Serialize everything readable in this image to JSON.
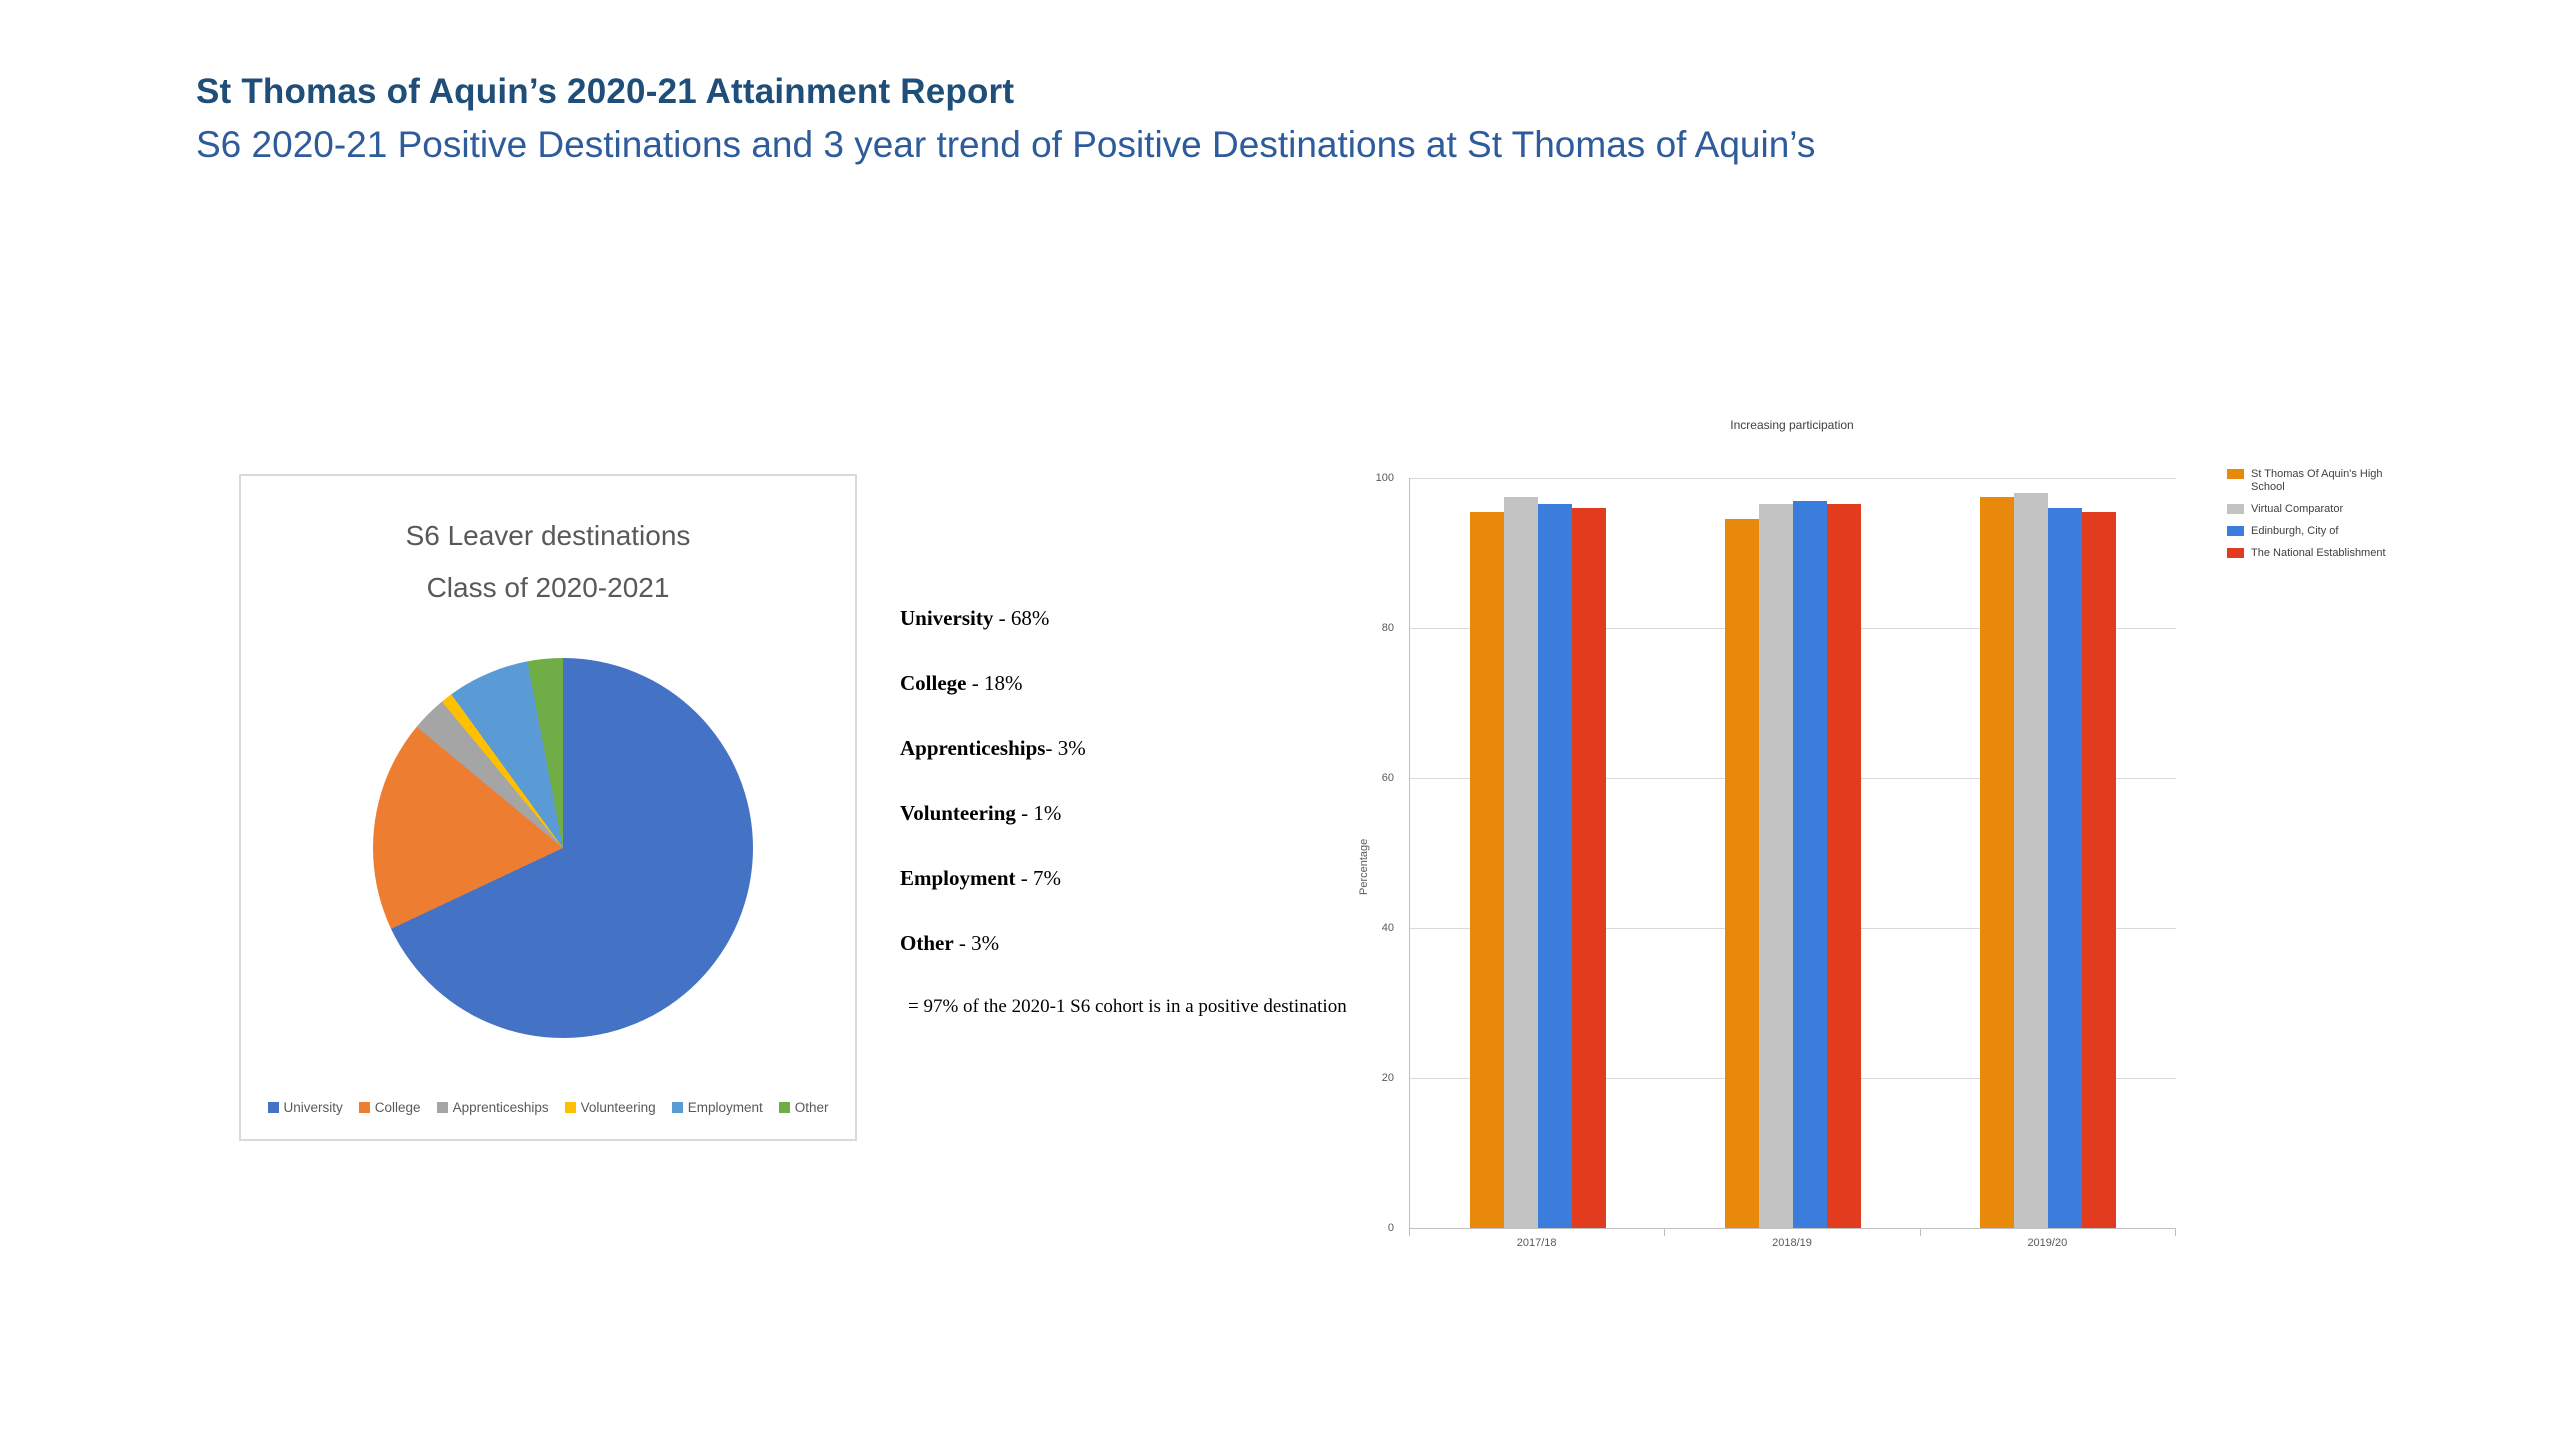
{
  "header": {
    "title": "St Thomas of Aquin’s 2020-21 Attainment Report",
    "subtitle": "S6 2020-21 Positive Destinations and 3 year trend of Positive Destinations at St Thomas of Aquin’s"
  },
  "destinations": {
    "lines": [
      {
        "label": "University",
        "rest": " - 68%"
      },
      {
        "label": "College",
        "rest": " - 18%"
      },
      {
        "label": "Apprenticeships",
        "rest": "- 3%"
      },
      {
        "label": "Volunteering",
        "rest": " - 1%"
      },
      {
        "label": "Employment",
        "rest": " - 7%"
      },
      {
        "label": "Other",
        "rest": " - 3%"
      }
    ],
    "summary": "= 97% of the 2020-1 S6 cohort is in a positive destination"
  },
  "chart_data": [
    {
      "type": "pie",
      "title_lines": [
        "S6 Leaver destinations",
        "Class of 2020-2021"
      ],
      "legend_position": "bottom",
      "slices": [
        {
          "label": "University",
          "value": 68,
          "color": "#4472C4"
        },
        {
          "label": "College",
          "value": 18,
          "color": "#ED7D31"
        },
        {
          "label": "Apprenticeships",
          "value": 3,
          "color": "#A5A5A5"
        },
        {
          "label": "Volunteering",
          "value": 1,
          "color": "#FFC000"
        },
        {
          "label": "Employment",
          "value": 7,
          "color": "#5B9BD5"
        },
        {
          "label": "Other",
          "value": 3,
          "color": "#70AD47"
        }
      ]
    },
    {
      "type": "bar",
      "title": "Increasing participation",
      "xlabel": "",
      "ylabel": "Percentage",
      "ylim": [
        0,
        100
      ],
      "yticks": [
        0,
        20,
        40,
        60,
        80,
        100
      ],
      "grid": true,
      "legend_position": "right",
      "categories": [
        "2017/18",
        "2018/19",
        "2019/20"
      ],
      "series": [
        {
          "name": "St Thomas Of Aquin's High School",
          "color": "#E8890C",
          "values": [
            95.5,
            94.5,
            97.5
          ]
        },
        {
          "name": "Virtual Comparator",
          "color": "#C3C3C3",
          "values": [
            97.5,
            96.5,
            98
          ]
        },
        {
          "name": "Edinburgh, City of",
          "color": "#3B7DDD",
          "values": [
            96.5,
            97,
            96
          ]
        },
        {
          "name": "The National Establishment",
          "color": "#E23C1E",
          "values": [
            96,
            96.5,
            95.5
          ]
        }
      ]
    }
  ]
}
